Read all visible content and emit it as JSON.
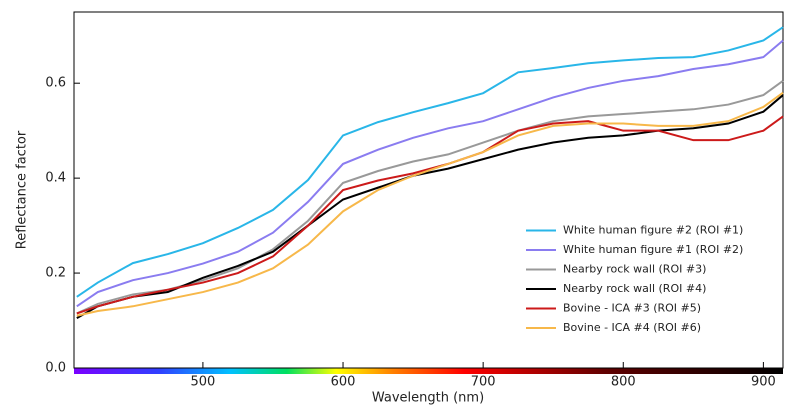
{
  "chart_data": {
    "type": "line",
    "x_label": "Wavelength (nm)",
    "y_label": "Reflectance factor",
    "x": [
      410,
      425,
      450,
      475,
      500,
      525,
      550,
      575,
      600,
      625,
      650,
      675,
      700,
      725,
      750,
      775,
      800,
      825,
      850,
      875,
      900,
      914
    ],
    "series": [
      {
        "name": "White human figure #2 (ROI #1)",
        "color": "#29b6e8",
        "values": [
          0.15,
          0.18,
          0.221,
          0.24,
          0.263,
          0.295,
          0.333,
          0.396,
          0.49,
          0.518,
          0.539,
          0.558,
          0.579,
          0.623,
          0.632,
          0.642,
          0.648,
          0.653,
          0.655,
          0.669,
          0.69,
          0.718
        ]
      },
      {
        "name": "White human figure #1 (ROI #2)",
        "color": "#8a7cf0",
        "values": [
          0.13,
          0.16,
          0.185,
          0.2,
          0.22,
          0.245,
          0.285,
          0.35,
          0.43,
          0.46,
          0.485,
          0.505,
          0.52,
          0.545,
          0.57,
          0.59,
          0.605,
          0.615,
          0.63,
          0.64,
          0.655,
          0.69
        ]
      },
      {
        "name": "Nearby rock wall (ROI #3)",
        "color": "#999999",
        "values": [
          0.115,
          0.135,
          0.155,
          0.165,
          0.185,
          0.21,
          0.25,
          0.31,
          0.39,
          0.415,
          0.435,
          0.45,
          0.475,
          0.5,
          0.52,
          0.53,
          0.535,
          0.54,
          0.545,
          0.555,
          0.575,
          0.605
        ]
      },
      {
        "name": "Nearby rock wall (ROI #4)",
        "color": "#000000",
        "values": [
          0.105,
          0.13,
          0.15,
          0.16,
          0.19,
          0.215,
          0.245,
          0.3,
          0.355,
          0.38,
          0.405,
          0.42,
          0.44,
          0.46,
          0.475,
          0.485,
          0.49,
          0.5,
          0.505,
          0.515,
          0.54,
          0.575
        ]
      },
      {
        "name": "Bovine - ICA #3 (ROI #5)",
        "color": "#cc1a1a",
        "values": [
          0.115,
          0.13,
          0.15,
          0.165,
          0.18,
          0.2,
          0.235,
          0.3,
          0.375,
          0.395,
          0.41,
          0.43,
          0.455,
          0.5,
          0.515,
          0.52,
          0.5,
          0.5,
          0.48,
          0.48,
          0.5,
          0.53
        ]
      },
      {
        "name": "Bovine - ICA #4 (ROI #6)",
        "color": "#f7b84a",
        "values": [
          0.11,
          0.12,
          0.13,
          0.145,
          0.16,
          0.18,
          0.21,
          0.26,
          0.33,
          0.375,
          0.405,
          0.43,
          0.455,
          0.49,
          0.51,
          0.515,
          0.515,
          0.51,
          0.51,
          0.52,
          0.55,
          0.58
        ]
      }
    ],
    "xlim": [
      408,
      914
    ],
    "ylim": [
      0,
      0.75
    ],
    "xticks": [
      500,
      600,
      700,
      800,
      900
    ],
    "yticks": [
      {
        "value": 0,
        "label": "0.0"
      },
      0.2,
      0.4,
      0.6
    ],
    "legend": "lower right"
  }
}
